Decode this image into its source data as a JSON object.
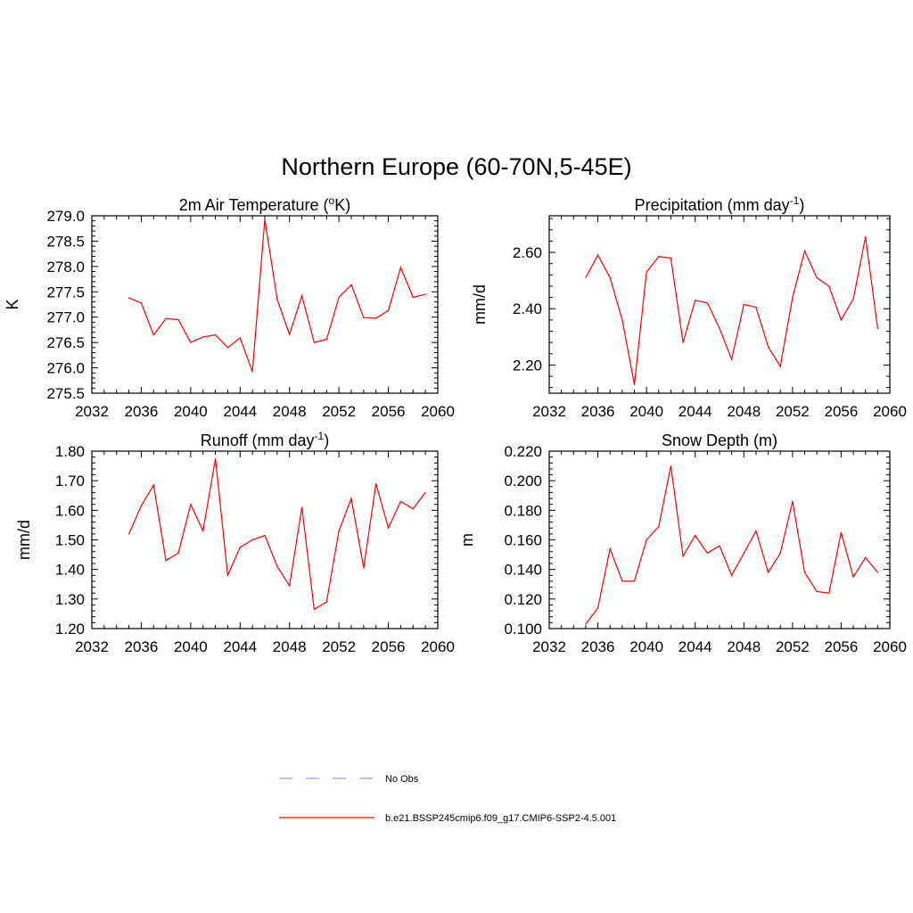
{
  "title": "Northern Europe (60-70N,5-45E)",
  "legend": {
    "placement": "bottom-center",
    "entries": [
      {
        "label": "No Obs",
        "color": "#9999ff",
        "style": "dashed"
      },
      {
        "label": "b.e21.BSSP245cmip6.f09_g17.CMIP6-SSP2-4.5.001",
        "color": "#ff0000",
        "style": "solid"
      }
    ]
  },
  "chart_data": [
    {
      "type": "line",
      "title": "2m Air Temperature (",
      "title_sup": "o",
      "title_suffix": "K)",
      "ylabel": "K",
      "xlabel": "",
      "xlim": [
        2032,
        2060
      ],
      "ylim": [
        275.5,
        279.0
      ],
      "xticks": [
        2032,
        2036,
        2040,
        2044,
        2048,
        2052,
        2056,
        2060
      ],
      "yticks": [
        275.5,
        276.0,
        276.5,
        277.0,
        277.5,
        278.0,
        278.5,
        279.0
      ],
      "ytick_labels": [
        "275.5",
        "276.0",
        "276.5",
        "277.0",
        "277.5",
        "278.0",
        "278.5",
        "279.0"
      ],
      "series": [
        {
          "color": "#ff0000",
          "x": [
            2035,
            2036,
            2037,
            2038,
            2039,
            2040,
            2041,
            2042,
            2043,
            2044,
            2045,
            2046,
            2047,
            2048,
            2049,
            2050,
            2051,
            2052,
            2053,
            2054,
            2055,
            2056,
            2057,
            2058,
            2059
          ],
          "values": [
            277.38,
            277.28,
            276.65,
            276.97,
            276.95,
            276.5,
            276.61,
            276.65,
            276.4,
            276.59,
            275.92,
            278.93,
            277.35,
            276.66,
            277.42,
            276.5,
            276.56,
            277.39,
            277.64,
            276.99,
            276.98,
            277.13,
            277.98,
            277.39,
            277.45
          ]
        }
      ]
    },
    {
      "type": "line",
      "title": "Precipitation (mm day",
      "title_sup": "-1",
      "title_suffix": ")",
      "ylabel": "mm/d",
      "xlabel": "",
      "xlim": [
        2032,
        2060
      ],
      "ylim": [
        2.1,
        2.73
      ],
      "xticks": [
        2032,
        2036,
        2040,
        2044,
        2048,
        2052,
        2056,
        2060
      ],
      "yticks": [
        2.2,
        2.4,
        2.6
      ],
      "ytick_labels": [
        "2.20",
        "2.40",
        "2.60"
      ],
      "series": [
        {
          "color": "#ff0000",
          "x": [
            2035,
            2036,
            2037,
            2038,
            2039,
            2040,
            2041,
            2042,
            2043,
            2044,
            2045,
            2046,
            2047,
            2048,
            2049,
            2050,
            2051,
            2052,
            2053,
            2054,
            2055,
            2056,
            2057,
            2058,
            2059
          ],
          "values": [
            2.51,
            2.59,
            2.51,
            2.36,
            2.13,
            2.53,
            2.585,
            2.58,
            2.28,
            2.43,
            2.42,
            2.33,
            2.22,
            2.415,
            2.405,
            2.265,
            2.195,
            2.44,
            2.605,
            2.51,
            2.48,
            2.36,
            2.435,
            2.655,
            2.33
          ]
        }
      ]
    },
    {
      "type": "line",
      "title": "Runoff (mm day",
      "title_sup": "-1",
      "title_suffix": ")",
      "ylabel": "mm/d",
      "xlabel": "",
      "xlim": [
        2032,
        2060
      ],
      "ylim": [
        1.2,
        1.8
      ],
      "xticks": [
        2032,
        2036,
        2040,
        2044,
        2048,
        2052,
        2056,
        2060
      ],
      "yticks": [
        1.2,
        1.3,
        1.4,
        1.5,
        1.6,
        1.7,
        1.8
      ],
      "ytick_labels": [
        "1.20",
        "1.30",
        "1.40",
        "1.50",
        "1.60",
        "1.70",
        "1.80"
      ],
      "series": [
        {
          "color": "#ff0000",
          "x": [
            2035,
            2036,
            2037,
            2038,
            2039,
            2040,
            2041,
            2042,
            2043,
            2044,
            2045,
            2046,
            2047,
            2048,
            2049,
            2050,
            2051,
            2052,
            2053,
            2054,
            2055,
            2056,
            2057,
            2058,
            2059
          ],
          "values": [
            1.52,
            1.615,
            1.685,
            1.43,
            1.455,
            1.62,
            1.53,
            1.775,
            1.38,
            1.475,
            1.5,
            1.515,
            1.41,
            1.345,
            1.61,
            1.265,
            1.29,
            1.53,
            1.64,
            1.405,
            1.69,
            1.54,
            1.63,
            1.605,
            1.66
          ]
        }
      ]
    },
    {
      "type": "line",
      "title": "Snow Depth (m)",
      "title_sup": "",
      "title_suffix": "",
      "ylabel": "m",
      "xlabel": "",
      "xlim": [
        2032,
        2060
      ],
      "ylim": [
        0.1,
        0.22
      ],
      "xticks": [
        2032,
        2036,
        2040,
        2044,
        2048,
        2052,
        2056,
        2060
      ],
      "yticks": [
        0.1,
        0.12,
        0.14,
        0.16,
        0.18,
        0.2,
        0.22
      ],
      "ytick_labels": [
        "0.100",
        "0.120",
        "0.140",
        "0.160",
        "0.180",
        "0.200",
        "0.220"
      ],
      "series": [
        {
          "color": "#ff0000",
          "x": [
            2035,
            2036,
            2037,
            2038,
            2039,
            2040,
            2041,
            2042,
            2043,
            2044,
            2045,
            2046,
            2047,
            2048,
            2049,
            2050,
            2051,
            2052,
            2053,
            2054,
            2055,
            2056,
            2057,
            2058,
            2059
          ],
          "values": [
            0.103,
            0.114,
            0.154,
            0.132,
            0.132,
            0.16,
            0.169,
            0.21,
            0.149,
            0.163,
            0.151,
            0.156,
            0.136,
            0.151,
            0.166,
            0.138,
            0.151,
            0.186,
            0.138,
            0.125,
            0.124,
            0.165,
            0.135,
            0.148,
            0.138
          ]
        }
      ]
    }
  ]
}
